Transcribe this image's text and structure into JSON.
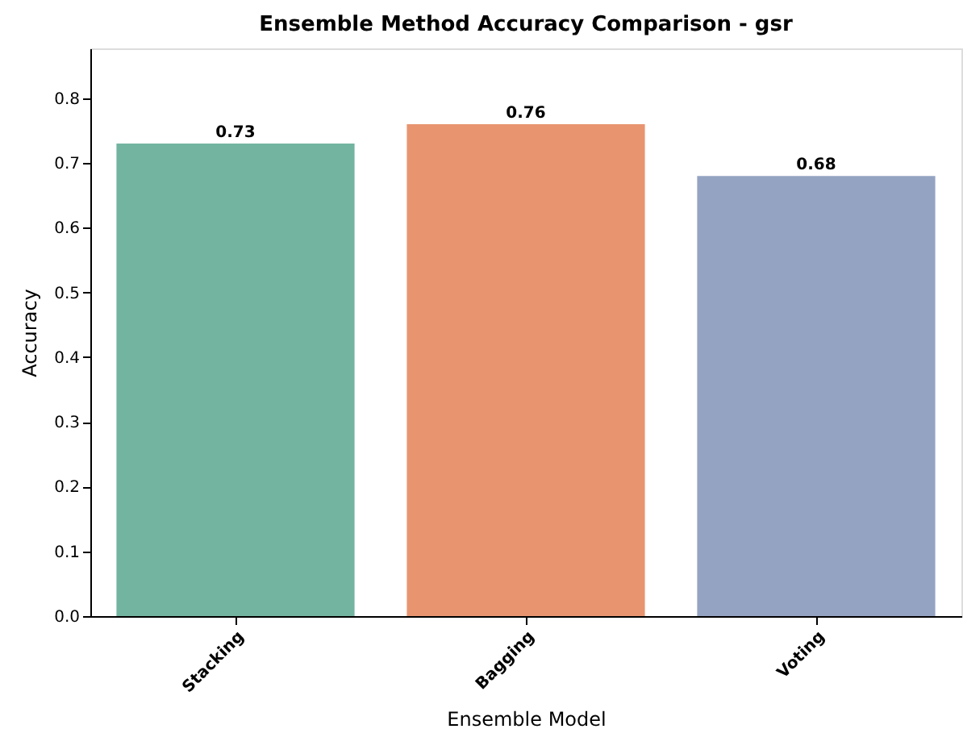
{
  "chart_data": {
    "type": "bar",
    "title": "Ensemble Method Accuracy Comparison - gsr",
    "xlabel": "Ensemble Model",
    "ylabel": "Accuracy",
    "categories": [
      "Stacking",
      "Bagging",
      "Voting"
    ],
    "values": [
      0.73,
      0.76,
      0.68
    ],
    "colors": [
      "#72b4a0",
      "#e8956f",
      "#94a3c2"
    ],
    "ylim": [
      0,
      0.877
    ],
    "yticks": [
      {
        "value": 0,
        "label": "0.0"
      },
      0.1,
      0.2,
      0.3,
      0.4,
      0.5,
      0.6,
      0.7,
      0.8
    ],
    "data_labels": true,
    "grid": false,
    "legend": false
  }
}
